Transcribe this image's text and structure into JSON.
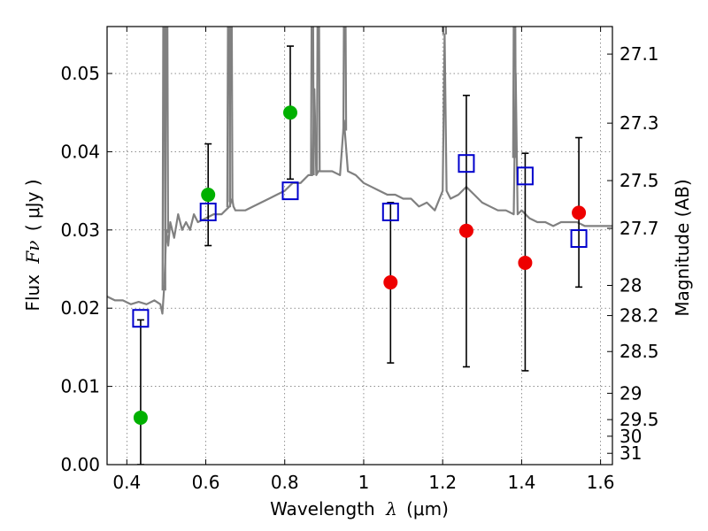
{
  "chart_data": {
    "type": "scatter",
    "xlabel_prefix": "Wavelength",
    "xlabel_var": "λ",
    "xlabel_units": "(μm)",
    "ylabel_prefix": "Flux",
    "ylabel_var": "Fν",
    "ylabel_units": "( μJy )",
    "y2label": "Magnitude (AB)",
    "xlim": [
      0.35,
      1.63
    ],
    "ylim": [
      0.0,
      0.056
    ],
    "x_ticks": [
      0.4,
      0.6,
      0.8,
      1.0,
      1.2,
      1.4,
      1.6
    ],
    "x_tick_labels": [
      "0.4",
      "0.6",
      "0.8",
      "1",
      "1.2",
      "1.4",
      "1.6"
    ],
    "y_ticks": [
      0.0,
      0.01,
      0.02,
      0.03,
      0.04,
      0.05
    ],
    "y_tick_labels": [
      "0.00",
      "0.01",
      "0.02",
      "0.03",
      "0.04",
      "0.05"
    ],
    "y2_ticks": [
      {
        "label": "27.1",
        "mag": 27.1
      },
      {
        "label": "27.3",
        "mag": 27.3
      },
      {
        "label": "27.5",
        "mag": 27.5
      },
      {
        "label": "27.7",
        "mag": 27.7
      },
      {
        "label": "28",
        "mag": 28.0
      },
      {
        "label": "28.2",
        "mag": 28.2
      },
      {
        "label": "28.5",
        "mag": 28.5
      },
      {
        "label": "29",
        "mag": 29.0
      },
      {
        "label": "29.5",
        "mag": 29.5
      },
      {
        "label": "30",
        "mag": 30.0
      },
      {
        "label": "31",
        "mag": 31.0
      }
    ],
    "grid": true,
    "colors": {
      "sed": "#808080",
      "detection": "#00b000",
      "upper_limit": "#ee0000",
      "model": "#0000cc",
      "errorbar": "#000000"
    },
    "sed_model": {
      "x": [
        0.35,
        0.37,
        0.39,
        0.41,
        0.43,
        0.45,
        0.47,
        0.485,
        0.49,
        0.495,
        0.5,
        0.505,
        0.51,
        0.52,
        0.53,
        0.54,
        0.55,
        0.56,
        0.57,
        0.58,
        0.6,
        0.62,
        0.64,
        0.65,
        0.66,
        0.667,
        0.67,
        0.675,
        0.68,
        0.7,
        0.72,
        0.74,
        0.76,
        0.78,
        0.8,
        0.82,
        0.84,
        0.86,
        0.87,
        0.875,
        0.88,
        0.885,
        0.89,
        0.9,
        0.92,
        0.94,
        0.95,
        0.96,
        0.98,
        1.0,
        1.02,
        1.04,
        1.06,
        1.08,
        1.1,
        1.12,
        1.14,
        1.16,
        1.18,
        1.2,
        1.205,
        1.21,
        1.22,
        1.24,
        1.26,
        1.28,
        1.3,
        1.32,
        1.34,
        1.36,
        1.38,
        1.385,
        1.39,
        1.4,
        1.42,
        1.44,
        1.46,
        1.48,
        1.5,
        1.52,
        1.54,
        1.56,
        1.58,
        1.6,
        1.63
      ],
      "y": [
        0.0215,
        0.021,
        0.021,
        0.0205,
        0.0208,
        0.0205,
        0.021,
        0.0205,
        0.0193,
        0.023,
        0.03,
        0.028,
        0.031,
        0.029,
        0.032,
        0.03,
        0.031,
        0.03,
        0.032,
        0.031,
        0.0315,
        0.032,
        0.032,
        0.0325,
        0.033,
        0.034,
        0.033,
        0.0325,
        0.0325,
        0.0325,
        0.033,
        0.0335,
        0.034,
        0.0345,
        0.035,
        0.036,
        0.036,
        0.037,
        0.037,
        0.048,
        0.037,
        0.0375,
        0.0375,
        0.0375,
        0.0375,
        0.037,
        0.044,
        0.0375,
        0.037,
        0.036,
        0.0355,
        0.035,
        0.0345,
        0.0345,
        0.034,
        0.034,
        0.033,
        0.0335,
        0.0325,
        0.035,
        0.055,
        0.035,
        0.034,
        0.0345,
        0.0355,
        0.0345,
        0.0335,
        0.033,
        0.0325,
        0.0325,
        0.032,
        0.05,
        0.032,
        0.0325,
        0.0315,
        0.031,
        0.031,
        0.0305,
        0.031,
        0.031,
        0.031,
        0.0305,
        0.0305,
        0.0305,
        0.0305
      ]
    },
    "sed_spikes": [
      {
        "x": 0.494,
        "peak": 0.056
      },
      {
        "x": 0.501,
        "peak": 0.056
      },
      {
        "x": 0.658,
        "peak": 0.056
      },
      {
        "x": 0.664,
        "peak": 0.056
      },
      {
        "x": 0.87,
        "peak": 0.056
      },
      {
        "x": 0.885,
        "peak": 0.056
      },
      {
        "x": 0.952,
        "peak": 0.056
      },
      {
        "x": 1.205,
        "peak": 0.056
      },
      {
        "x": 1.382,
        "peak": 0.056
      }
    ],
    "detections": [
      {
        "x": 0.435,
        "y": 0.006,
        "err_low": 0.0,
        "err_high": 0.0185
      },
      {
        "x": 0.606,
        "y": 0.0345,
        "err_low": 0.028,
        "err_high": 0.041
      },
      {
        "x": 0.814,
        "y": 0.045,
        "err_low": 0.0365,
        "err_high": 0.0535
      }
    ],
    "upper_limits": [
      {
        "x": 1.068,
        "y": 0.0233,
        "err_low": 0.013,
        "err_high": 0.0335
      },
      {
        "x": 1.26,
        "y": 0.0299,
        "err_low": 0.0125,
        "err_high": 0.0472
      },
      {
        "x": 1.409,
        "y": 0.0258,
        "err_low": 0.012,
        "err_high": 0.0398
      },
      {
        "x": 1.545,
        "y": 0.0322,
        "err_low": 0.0227,
        "err_high": 0.0418
      }
    ],
    "model_photometry": [
      {
        "x": 0.435,
        "y": 0.0187
      },
      {
        "x": 0.606,
        "y": 0.0323
      },
      {
        "x": 0.814,
        "y": 0.035
      },
      {
        "x": 1.068,
        "y": 0.0323
      },
      {
        "x": 1.26,
        "y": 0.0385
      },
      {
        "x": 1.409,
        "y": 0.0369
      },
      {
        "x": 1.545,
        "y": 0.0289
      }
    ]
  }
}
